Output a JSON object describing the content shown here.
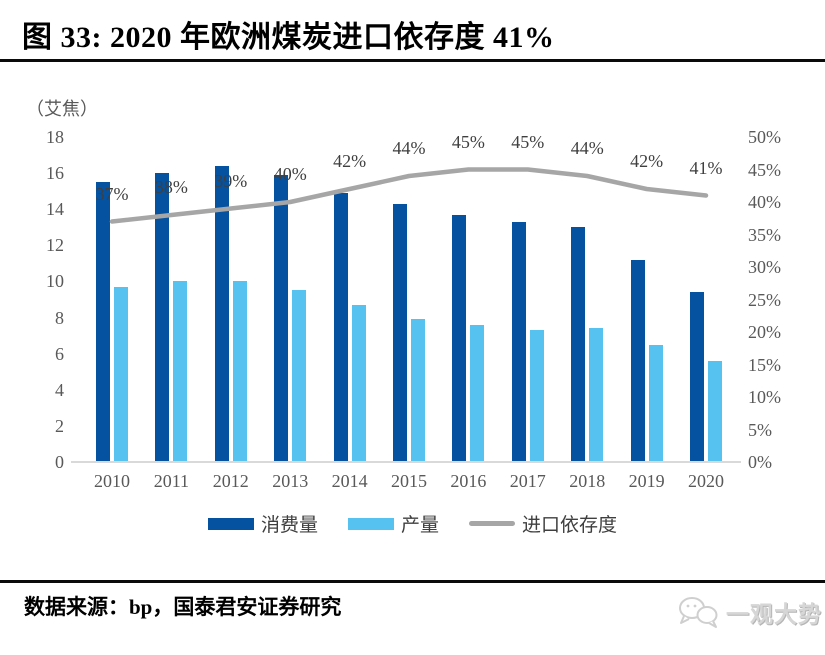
{
  "header": {
    "title": "图 33: 2020 年欧洲煤炭进口依存度 41%"
  },
  "chart_data": {
    "type": "combo",
    "title": "2020 年欧洲煤炭进口依存度 41%",
    "unit_label": "（艾焦）",
    "categories": [
      "2010",
      "2011",
      "2012",
      "2013",
      "2014",
      "2015",
      "2016",
      "2017",
      "2018",
      "2019",
      "2020"
    ],
    "series": [
      {
        "key": "consumption",
        "name": "消费量",
        "kind": "bar",
        "axis": "left",
        "color": "#0452a0",
        "values": [
          15.5,
          16.0,
          16.4,
          15.9,
          14.9,
          14.3,
          13.7,
          13.3,
          13.0,
          11.2,
          9.4
        ]
      },
      {
        "key": "production",
        "name": "产量",
        "kind": "bar",
        "axis": "left",
        "color": "#56c2ef",
        "values": [
          9.7,
          10.0,
          10.0,
          9.5,
          8.7,
          7.9,
          7.6,
          7.3,
          7.4,
          6.5,
          5.6
        ]
      },
      {
        "key": "import-dependency",
        "name": "进口依存度",
        "kind": "line",
        "axis": "right",
        "color": "#a6a6a6",
        "values": [
          37,
          38,
          39,
          40,
          42,
          44,
          45,
          45,
          44,
          42,
          41
        ],
        "data_labels": [
          "37%",
          "38%",
          "39%",
          "40%",
          "42%",
          "44%",
          "45%",
          "45%",
          "44%",
          "42%",
          "41%"
        ]
      }
    ],
    "left_axis": {
      "range": [
        0,
        18
      ],
      "ticks": [
        "18",
        "16",
        "14",
        "12",
        "10",
        "8",
        "6",
        "4",
        "2",
        "0"
      ],
      "tick_values": [
        18,
        16,
        14,
        12,
        10,
        8,
        6,
        4,
        2,
        0
      ]
    },
    "right_axis": {
      "range_pct": [
        0,
        50
      ],
      "ticks": [
        "50%",
        "45%",
        "40%",
        "35%",
        "30%",
        "25%",
        "20%",
        "15%",
        "10%",
        "5%",
        "0%"
      ],
      "tick_values": [
        50,
        45,
        40,
        35,
        30,
        25,
        20,
        15,
        10,
        5,
        0
      ]
    },
    "legend_position": "bottom",
    "grid": "off"
  },
  "footer": {
    "source": "数据来源：bp，国泰君安证券研究",
    "logo_text": "一观大势"
  }
}
